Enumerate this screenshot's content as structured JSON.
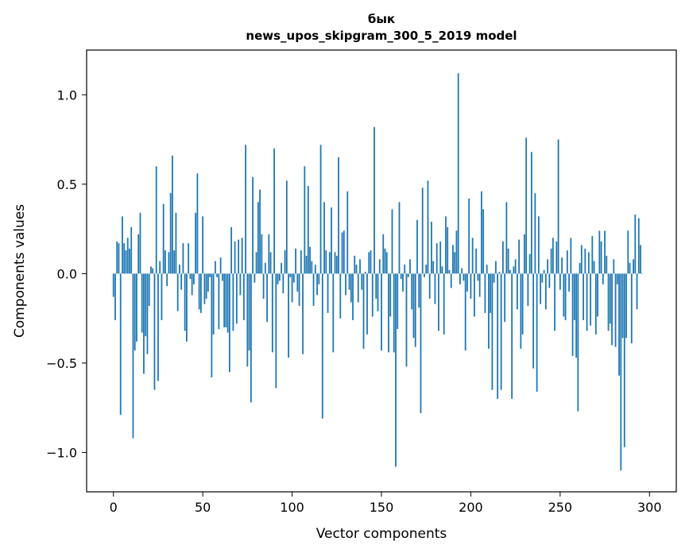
{
  "chart_data": {
    "type": "bar",
    "title": "бык",
    "subtitle": "news_upos_skipgram_300_5_2019 model",
    "xlabel": "Vector components",
    "ylabel": "Components values",
    "xlim": [
      -15,
      315
    ],
    "ylim": [
      -1.22,
      1.25
    ],
    "xticks": [
      0,
      50,
      100,
      150,
      200,
      250,
      300
    ],
    "yticks": [
      1.0,
      0.5,
      0.0,
      -0.5,
      -1.0
    ],
    "ytick_labels": [
      "1.0",
      "0.5",
      "0.0",
      "−0.5",
      "−1.0"
    ],
    "bar_color": "#1f77b4",
    "grid": false,
    "values": [
      -0.13,
      -0.26,
      0.18,
      0.17,
      -0.79,
      0.32,
      0.17,
      0.13,
      0.2,
      0.14,
      0.26,
      -0.92,
      -0.43,
      -0.38,
      0.22,
      0.34,
      -0.33,
      -0.56,
      -0.35,
      -0.45,
      -0.18,
      0.04,
      0.03,
      -0.65,
      0.6,
      -0.6,
      0.07,
      -0.26,
      0.39,
      0.13,
      -0.07,
      0.12,
      0.45,
      0.66,
      0.13,
      0.34,
      -0.21,
      0.05,
      -0.09,
      0.17,
      -0.32,
      -0.38,
      0.17,
      -0.03,
      -0.12,
      -0.06,
      0.34,
      0.56,
      -0.2,
      -0.22,
      0.32,
      -0.17,
      -0.14,
      -0.1,
      -0.02,
      -0.58,
      -0.34,
      0.07,
      -0.02,
      -0.31,
      0.09,
      -0.04,
      -0.3,
      -0.3,
      -0.33,
      -0.55,
      0.26,
      -0.32,
      0.18,
      -0.28,
      0.19,
      -0.12,
      0.2,
      -0.26,
      0.72,
      -0.52,
      -0.43,
      -0.72,
      0.54,
      -0.05,
      0.12,
      0.4,
      0.47,
      0.22,
      -0.14,
      0.06,
      -0.27,
      0.22,
      0.12,
      -0.44,
      0.7,
      -0.64,
      -0.06,
      -0.04,
      0.06,
      -0.11,
      0.13,
      0.52,
      -0.47,
      -0.02,
      -0.16,
      -0.05,
      0.14,
      -0.1,
      -0.18,
      0.13,
      -0.45,
      0.6,
      0.1,
      0.49,
      0.15,
      0.07,
      -0.18,
      0.05,
      -0.12,
      -0.06,
      0.72,
      -0.81,
      0.4,
      0.13,
      -0.22,
      0.12,
      0.37,
      -0.44,
      0.12,
      0.1,
      0.65,
      -0.25,
      0.23,
      0.24,
      -0.12,
      0.46,
      -0.09,
      -0.16,
      -0.26,
      0.1,
      0.05,
      -0.16,
      0.08,
      -0.09,
      -0.42,
      0.01,
      -0.34,
      0.12,
      0.13,
      -0.24,
      0.82,
      -0.14,
      -0.21,
      0.08,
      -0.43,
      0.22,
      0.14,
      0.12,
      -0.44,
      -0.24,
      0.36,
      -0.44,
      -1.08,
      -0.31,
      0.4,
      -0.03,
      -0.1,
      0.05,
      -0.52,
      -0.02,
      0.08,
      -0.2,
      -0.36,
      -0.41,
      0.3,
      -0.19,
      -0.78,
      0.48,
      -0.02,
      0.05,
      0.52,
      -0.14,
      0.29,
      0.07,
      -0.17,
      0.17,
      -0.32,
      0.18,
      0.04,
      -0.34,
      0.32,
      0.26,
      0.02,
      -0.08,
      0.16,
      0.12,
      0.24,
      1.12,
      -0.06,
      0.03,
      -0.04,
      -0.43,
      -0.1,
      0.42,
      -0.14,
      0.2,
      -0.24,
      0.14,
      -0.04,
      -0.13,
      0.46,
      0.36,
      -0.22,
      0.05,
      -0.42,
      -0.22,
      -0.65,
      -0.05,
      0.07,
      -0.7,
      0.01,
      -0.65,
      0.18,
      -0.27,
      0.4,
      0.14,
      0.02,
      -0.7,
      0.04,
      0.08,
      -0.2,
      0.19,
      -0.42,
      -0.34,
      0.22,
      0.76,
      -0.18,
      0.11,
      0.68,
      -0.53,
      0.45,
      -0.66,
      0.32,
      -0.17,
      -0.05,
      0.02,
      -0.2,
      0.08,
      -0.08,
      0.14,
      0.2,
      -0.32,
      0.18,
      0.75,
      -0.09,
      0.09,
      -0.24,
      -0.26,
      0.13,
      -0.1,
      0.2,
      -0.46,
      -0.26,
      -0.47,
      -0.77,
      0.06,
      0.16,
      -0.26,
      0.14,
      -0.32,
      0.12,
      -0.29,
      0.21,
      0.07,
      -0.34,
      -0.24,
      0.24,
      0.18,
      -0.06,
      0.24,
      0.1,
      -0.32,
      -0.28,
      -0.4,
      0.08,
      -0.41,
      -0.06,
      -0.57,
      -1.1,
      -0.36,
      -0.97,
      -0.36,
      0.24,
      0.06,
      -0.39,
      0.08,
      0.33,
      -0.2,
      0.31,
      0.16,
      0.0
    ]
  }
}
